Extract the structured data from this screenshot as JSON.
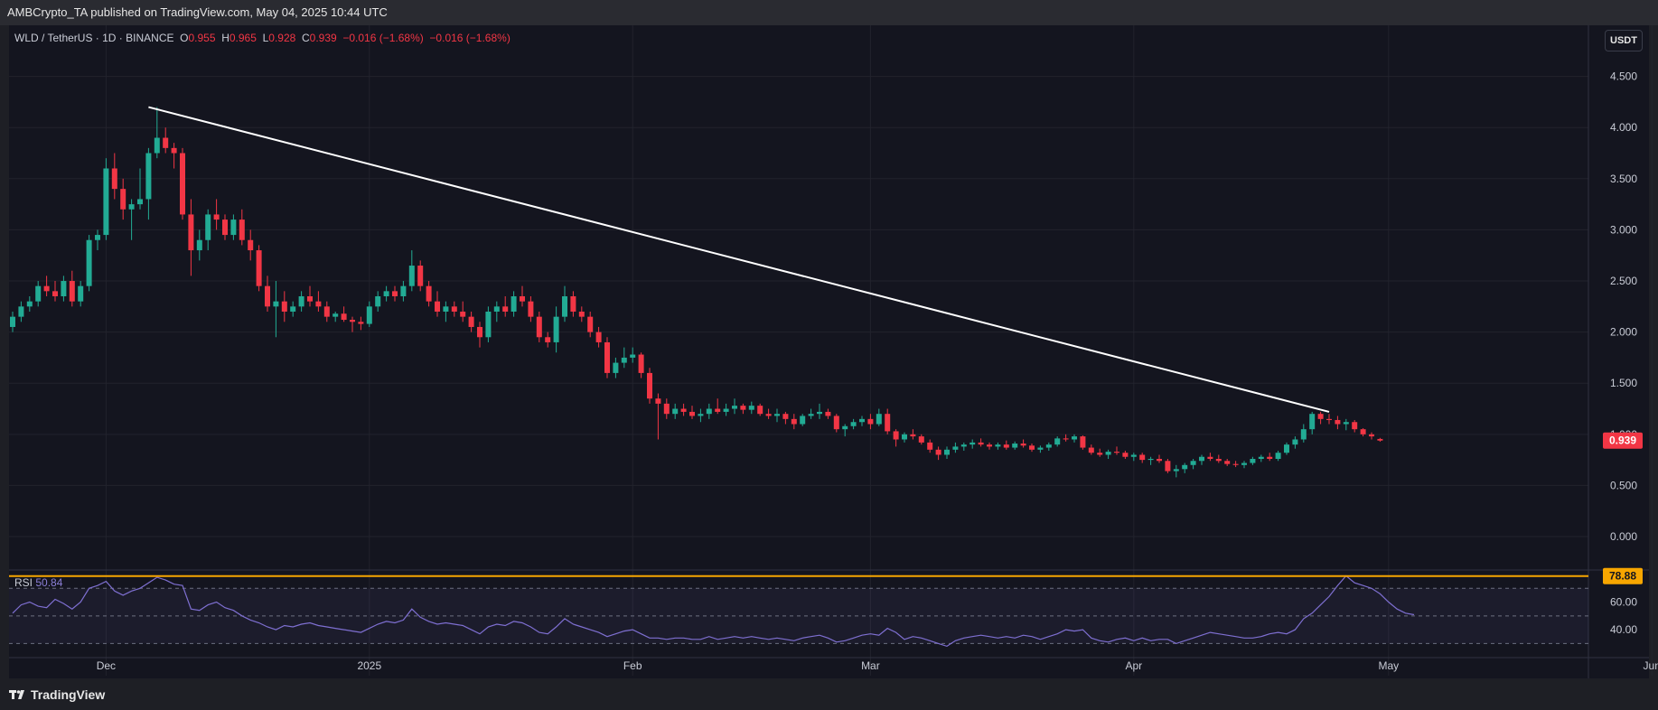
{
  "header": {
    "published_text": "AMBCrypto_TA published on TradingView.com, May 04, 2025 10:44 UTC"
  },
  "legend": {
    "symbol": "WLD / TetherUS · 1D · BINANCE",
    "o_label": "O",
    "o_value": "0.955",
    "h_label": "H",
    "h_value": "0.965",
    "l_label": "L",
    "l_value": "0.928",
    "c_label": "C",
    "c_value": "0.939",
    "change": "−0.016 (−1.68%)",
    "change2": "−0.016 (−1.68%)"
  },
  "currency_button": "USDT",
  "rsi": {
    "label": "RSI",
    "value": "50.84",
    "high_badge": "78.88"
  },
  "brand": "TradingView",
  "colors": {
    "up": "#22ab94",
    "down": "#f23645",
    "rsi_line": "#7e6fd1",
    "trendline": "#ffffff",
    "rsi_badge": "#f7a600"
  },
  "chart_data": {
    "type": "candlestick",
    "title": "WLD / TetherUS · 1D · BINANCE",
    "x_ticks": [
      "Dec",
      "2025",
      "Feb",
      "Mar",
      "Apr",
      "May",
      "Jun"
    ],
    "y_ticks": [
      "4.500",
      "4.000",
      "3.500",
      "3.000",
      "2.500",
      "2.000",
      "1.500",
      "1.000",
      "0.500",
      "0.000"
    ],
    "ylim": [
      -0.3,
      5.0
    ],
    "last_price": "0.939",
    "rsi_ticks": [
      "60.00",
      "40.00"
    ],
    "rsi_ylim": [
      25,
      80
    ],
    "rsi_bands": [
      70,
      50,
      30
    ],
    "trendline": [
      {
        "date": "2024-12-06",
        "price": 4.2
      },
      {
        "date": "2025-04-24",
        "price": 1.22
      }
    ],
    "start_date": "2024-11-20",
    "candles": [
      [
        2.05,
        2.2,
        2.0,
        2.15
      ],
      [
        2.15,
        2.3,
        2.1,
        2.25
      ],
      [
        2.25,
        2.35,
        2.2,
        2.3
      ],
      [
        2.3,
        2.5,
        2.25,
        2.45
      ],
      [
        2.45,
        2.55,
        2.35,
        2.4
      ],
      [
        2.4,
        2.5,
        2.3,
        2.35
      ],
      [
        2.35,
        2.55,
        2.3,
        2.5
      ],
      [
        2.5,
        2.6,
        2.25,
        2.3
      ],
      [
        2.3,
        2.5,
        2.25,
        2.45
      ],
      [
        2.45,
        2.95,
        2.4,
        2.9
      ],
      [
        2.9,
        3.0,
        2.8,
        2.95
      ],
      [
        2.95,
        3.7,
        2.9,
        3.6
      ],
      [
        3.6,
        3.75,
        3.3,
        3.4
      ],
      [
        3.4,
        3.5,
        3.1,
        3.2
      ],
      [
        3.2,
        3.3,
        2.9,
        3.25
      ],
      [
        3.25,
        3.6,
        3.2,
        3.3
      ],
      [
        3.3,
        3.8,
        3.1,
        3.75
      ],
      [
        3.75,
        4.2,
        3.7,
        3.9
      ],
      [
        3.9,
        4.0,
        3.75,
        3.8
      ],
      [
        3.8,
        3.85,
        3.6,
        3.75
      ],
      [
        3.75,
        3.8,
        3.1,
        3.15
      ],
      [
        3.15,
        3.3,
        2.55,
        2.8
      ],
      [
        2.8,
        3.0,
        2.7,
        2.9
      ],
      [
        2.9,
        3.2,
        2.8,
        3.15
      ],
      [
        3.15,
        3.3,
        3.0,
        3.1
      ],
      [
        3.1,
        3.15,
        2.9,
        2.95
      ],
      [
        2.95,
        3.15,
        2.9,
        3.1
      ],
      [
        3.1,
        3.2,
        2.85,
        2.9
      ],
      [
        2.9,
        3.0,
        2.7,
        2.8
      ],
      [
        2.8,
        2.85,
        2.4,
        2.45
      ],
      [
        2.45,
        2.55,
        2.2,
        2.25
      ],
      [
        2.25,
        2.5,
        1.95,
        2.3
      ],
      [
        2.3,
        2.4,
        2.1,
        2.2
      ],
      [
        2.2,
        2.3,
        2.15,
        2.25
      ],
      [
        2.25,
        2.4,
        2.2,
        2.35
      ],
      [
        2.35,
        2.45,
        2.25,
        2.3
      ],
      [
        2.3,
        2.4,
        2.2,
        2.25
      ],
      [
        2.25,
        2.3,
        2.1,
        2.15
      ],
      [
        2.15,
        2.2,
        2.1,
        2.18
      ],
      [
        2.18,
        2.25,
        2.1,
        2.12
      ],
      [
        2.12,
        2.15,
        2.0,
        2.1
      ],
      [
        2.1,
        2.15,
        2.02,
        2.08
      ],
      [
        2.08,
        2.3,
        2.05,
        2.25
      ],
      [
        2.25,
        2.4,
        2.2,
        2.35
      ],
      [
        2.35,
        2.45,
        2.3,
        2.4
      ],
      [
        2.4,
        2.45,
        2.3,
        2.35
      ],
      [
        2.35,
        2.5,
        2.3,
        2.45
      ],
      [
        2.45,
        2.8,
        2.4,
        2.65
      ],
      [
        2.65,
        2.7,
        2.4,
        2.45
      ],
      [
        2.45,
        2.5,
        2.25,
        2.3
      ],
      [
        2.3,
        2.4,
        2.15,
        2.2
      ],
      [
        2.2,
        2.3,
        2.1,
        2.25
      ],
      [
        2.25,
        2.3,
        2.15,
        2.2
      ],
      [
        2.2,
        2.3,
        2.1,
        2.15
      ],
      [
        2.15,
        2.2,
        2.0,
        2.05
      ],
      [
        2.05,
        2.1,
        1.85,
        1.95
      ],
      [
        1.95,
        2.25,
        1.9,
        2.2
      ],
      [
        2.2,
        2.3,
        2.1,
        2.25
      ],
      [
        2.25,
        2.35,
        2.15,
        2.2
      ],
      [
        2.2,
        2.4,
        2.15,
        2.35
      ],
      [
        2.35,
        2.45,
        2.25,
        2.3
      ],
      [
        2.3,
        2.35,
        2.1,
        2.15
      ],
      [
        2.15,
        2.2,
        1.9,
        1.95
      ],
      [
        1.95,
        2.0,
        1.85,
        1.9
      ],
      [
        1.9,
        2.25,
        1.8,
        2.15
      ],
      [
        2.15,
        2.45,
        2.1,
        2.35
      ],
      [
        2.35,
        2.4,
        2.15,
        2.2
      ],
      [
        2.2,
        2.25,
        2.1,
        2.15
      ],
      [
        2.15,
        2.2,
        1.95,
        2.0
      ],
      [
        2.0,
        2.05,
        1.85,
        1.9
      ],
      [
        1.9,
        1.95,
        1.55,
        1.6
      ],
      [
        1.6,
        1.75,
        1.55,
        1.7
      ],
      [
        1.7,
        1.85,
        1.65,
        1.75
      ],
      [
        1.75,
        1.85,
        1.7,
        1.78
      ],
      [
        1.78,
        1.8,
        1.55,
        1.6
      ],
      [
        1.6,
        1.65,
        1.3,
        1.35
      ],
      [
        1.35,
        1.4,
        0.95,
        1.3
      ],
      [
        1.3,
        1.35,
        1.15,
        1.2
      ],
      [
        1.2,
        1.3,
        1.15,
        1.25
      ],
      [
        1.25,
        1.3,
        1.18,
        1.22
      ],
      [
        1.22,
        1.28,
        1.15,
        1.18
      ],
      [
        1.18,
        1.25,
        1.12,
        1.2
      ],
      [
        1.2,
        1.3,
        1.15,
        1.25
      ],
      [
        1.25,
        1.35,
        1.2,
        1.22
      ],
      [
        1.22,
        1.3,
        1.18,
        1.25
      ],
      [
        1.25,
        1.35,
        1.2,
        1.28
      ],
      [
        1.28,
        1.3,
        1.2,
        1.24
      ],
      [
        1.24,
        1.32,
        1.2,
        1.28
      ],
      [
        1.28,
        1.3,
        1.18,
        1.2
      ],
      [
        1.2,
        1.25,
        1.15,
        1.18
      ],
      [
        1.18,
        1.25,
        1.12,
        1.2
      ],
      [
        1.2,
        1.22,
        1.1,
        1.15
      ],
      [
        1.15,
        1.2,
        1.05,
        1.1
      ],
      [
        1.1,
        1.2,
        1.08,
        1.18
      ],
      [
        1.18,
        1.25,
        1.15,
        1.2
      ],
      [
        1.2,
        1.3,
        1.15,
        1.22
      ],
      [
        1.22,
        1.25,
        1.15,
        1.18
      ],
      [
        1.18,
        1.2,
        1.02,
        1.05
      ],
      [
        1.05,
        1.1,
        0.98,
        1.08
      ],
      [
        1.08,
        1.15,
        1.05,
        1.12
      ],
      [
        1.12,
        1.18,
        1.08,
        1.15
      ],
      [
        1.15,
        1.2,
        1.05,
        1.1
      ],
      [
        1.1,
        1.25,
        1.08,
        1.2
      ],
      [
        1.2,
        1.25,
        1.0,
        1.03
      ],
      [
        1.03,
        1.05,
        0.88,
        0.95
      ],
      [
        0.95,
        1.02,
        0.92,
        1.0
      ],
      [
        1.0,
        1.05,
        0.95,
        0.98
      ],
      [
        0.98,
        1.0,
        0.9,
        0.92
      ],
      [
        0.92,
        0.95,
        0.82,
        0.85
      ],
      [
        0.85,
        0.88,
        0.75,
        0.8
      ],
      [
        0.8,
        0.88,
        0.76,
        0.85
      ],
      [
        0.85,
        0.92,
        0.82,
        0.88
      ],
      [
        0.88,
        0.92,
        0.84,
        0.9
      ],
      [
        0.9,
        0.95,
        0.86,
        0.92
      ],
      [
        0.92,
        0.96,
        0.88,
        0.9
      ],
      [
        0.9,
        0.92,
        0.85,
        0.88
      ],
      [
        0.88,
        0.92,
        0.85,
        0.9
      ],
      [
        0.9,
        0.94,
        0.85,
        0.87
      ],
      [
        0.87,
        0.93,
        0.85,
        0.91
      ],
      [
        0.91,
        0.95,
        0.87,
        0.89
      ],
      [
        0.89,
        0.91,
        0.83,
        0.85
      ],
      [
        0.85,
        0.89,
        0.82,
        0.87
      ],
      [
        0.87,
        0.92,
        0.84,
        0.9
      ],
      [
        0.9,
        0.98,
        0.88,
        0.96
      ],
      [
        0.96,
        1.0,
        0.93,
        0.95
      ],
      [
        0.95,
        1.0,
        0.92,
        0.98
      ],
      [
        0.98,
        0.99,
        0.85,
        0.87
      ],
      [
        0.87,
        0.9,
        0.8,
        0.82
      ],
      [
        0.82,
        0.86,
        0.78,
        0.8
      ],
      [
        0.8,
        0.85,
        0.76,
        0.83
      ],
      [
        0.83,
        0.88,
        0.8,
        0.82
      ],
      [
        0.82,
        0.84,
        0.76,
        0.78
      ],
      [
        0.78,
        0.82,
        0.74,
        0.8
      ],
      [
        0.8,
        0.82,
        0.72,
        0.75
      ],
      [
        0.75,
        0.78,
        0.7,
        0.76
      ],
      [
        0.76,
        0.8,
        0.72,
        0.74
      ],
      [
        0.74,
        0.76,
        0.62,
        0.64
      ],
      [
        0.64,
        0.7,
        0.58,
        0.66
      ],
      [
        0.66,
        0.72,
        0.62,
        0.7
      ],
      [
        0.7,
        0.76,
        0.66,
        0.74
      ],
      [
        0.74,
        0.8,
        0.7,
        0.78
      ],
      [
        0.78,
        0.82,
        0.74,
        0.76
      ],
      [
        0.76,
        0.8,
        0.72,
        0.74
      ],
      [
        0.74,
        0.76,
        0.69,
        0.71
      ],
      [
        0.71,
        0.74,
        0.68,
        0.7
      ],
      [
        0.7,
        0.74,
        0.67,
        0.72
      ],
      [
        0.72,
        0.78,
        0.7,
        0.76
      ],
      [
        0.76,
        0.8,
        0.73,
        0.78
      ],
      [
        0.78,
        0.82,
        0.74,
        0.76
      ],
      [
        0.76,
        0.84,
        0.74,
        0.82
      ],
      [
        0.82,
        0.92,
        0.8,
        0.9
      ],
      [
        0.9,
        0.98,
        0.86,
        0.95
      ],
      [
        0.95,
        1.1,
        0.92,
        1.05
      ],
      [
        1.05,
        1.22,
        1.0,
        1.2
      ],
      [
        1.2,
        1.22,
        1.1,
        1.15
      ],
      [
        1.15,
        1.2,
        1.1,
        1.14
      ],
      [
        1.14,
        1.18,
        1.05,
        1.1
      ],
      [
        1.1,
        1.15,
        1.04,
        1.12
      ],
      [
        1.12,
        1.14,
        1.02,
        1.05
      ],
      [
        1.05,
        1.06,
        0.98,
        1.0
      ],
      [
        1.0,
        1.02,
        0.95,
        0.98
      ],
      [
        0.955,
        0.965,
        0.928,
        0.939
      ]
    ],
    "rsi_values": [
      52,
      58,
      60,
      57,
      56,
      62,
      59,
      55,
      60,
      70,
      72,
      75,
      68,
      65,
      68,
      70,
      74,
      78,
      76,
      73,
      72,
      55,
      54,
      58,
      60,
      56,
      54,
      50,
      47,
      45,
      42,
      40,
      43,
      42,
      44,
      45,
      43,
      42,
      41,
      40,
      39,
      38,
      41,
      44,
      46,
      45,
      47,
      55,
      49,
      46,
      44,
      45,
      44,
      43,
      40,
      37,
      42,
      44,
      43,
      46,
      45,
      42,
      38,
      37,
      42,
      48,
      44,
      42,
      40,
      38,
      35,
      37,
      39,
      40,
      37,
      34,
      34,
      33,
      34,
      34,
      33,
      33,
      35,
      33,
      34,
      35,
      34,
      35,
      34,
      33,
      34,
      33,
      32,
      34,
      35,
      36,
      34,
      31,
      32,
      34,
      36,
      37,
      36,
      41,
      38,
      33,
      35,
      34,
      32,
      30,
      28,
      32,
      34,
      35,
      36,
      35,
      34,
      35,
      34,
      36,
      35,
      33,
      35,
      37,
      40,
      39,
      40,
      34,
      32,
      31,
      33,
      34,
      32,
      34,
      32,
      33,
      33,
      30,
      32,
      34,
      36,
      38,
      37,
      36,
      35,
      34,
      34,
      35,
      37,
      38,
      37,
      40,
      48,
      52,
      58,
      64,
      72,
      79,
      74,
      72,
      70,
      66,
      60,
      55,
      52,
      50.84
    ]
  }
}
